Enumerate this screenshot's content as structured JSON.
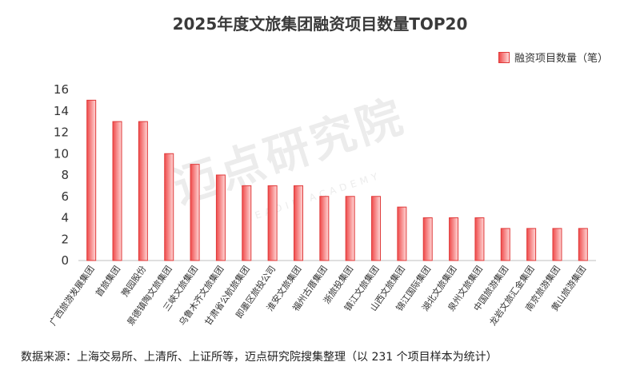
{
  "chart_data": {
    "type": "bar",
    "title": "2025年度文旅集团融资项目数量TOP20",
    "legend": "融资项目数量（笔）",
    "categories": [
      "广西旅游发展集团",
      "首旅集团",
      "豫园股份",
      "景德镇陶文旅集团",
      "三峡文旅集团",
      "乌鲁木齐文旅集团",
      "甘肃省公航旅集团",
      "即墨区旅投公司",
      "淮安文旅集团",
      "福州古厝集团",
      "浙旅投集团",
      "镇江文旅集团",
      "山西文旅集团",
      "锦江国际集团",
      "湖北文旅集团",
      "泉州文旅集团",
      "中国旅游集团",
      "龙岩文旅汇金集团",
      "南京旅游集团",
      "黄山旅游集团"
    ],
    "values": [
      15,
      13,
      13,
      10,
      9,
      8,
      7,
      7,
      7,
      6,
      6,
      6,
      5,
      4,
      4,
      4,
      3,
      3,
      3,
      3
    ],
    "ylim": [
      0,
      16
    ],
    "yticks": [
      0,
      2,
      4,
      6,
      8,
      10,
      12,
      14,
      16
    ],
    "xlabel": "",
    "ylabel": ""
  },
  "watermark": {
    "cn": "迈点研究院",
    "en": "MEADIN ACADEMY"
  },
  "footer": "数据来源：上海交易所、上清所、上证所等，迈点研究院搜集整理（以 231 个项目样本为统计）",
  "colors": {
    "bar_edge": "#e03a3a",
    "bar_fill_left": "#ef4b4b",
    "bar_fill_right": "#ffd7d7",
    "axis": "#bfbfbf"
  }
}
